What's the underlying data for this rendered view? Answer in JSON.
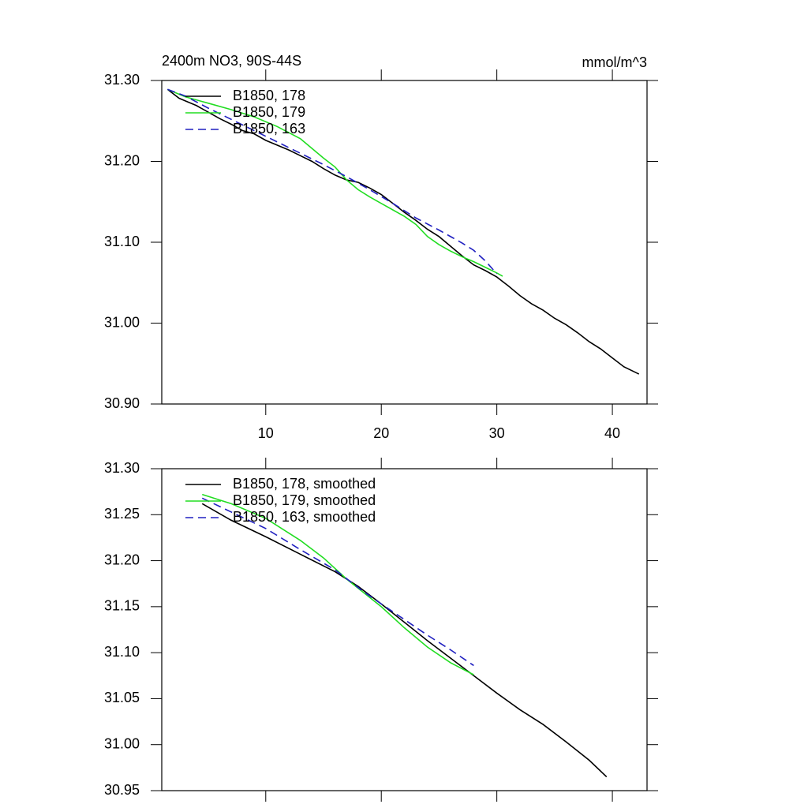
{
  "chart_data": [
    {
      "type": "line",
      "title": "2400m NO3, 90S-44S",
      "units": "mmol/m^3",
      "xlim": [
        1,
        43
      ],
      "xticks": [
        10,
        20,
        30,
        40
      ],
      "xtick_labels": true,
      "ylim": [
        30.9,
        31.3
      ],
      "yticks": [
        {
          "value": 30.9,
          "label": "30.90"
        },
        {
          "value": 31.0,
          "label": "31.00"
        },
        {
          "value": 31.1,
          "label": "31.10"
        },
        {
          "value": 31.2,
          "label": "31.20"
        },
        {
          "value": 31.3,
          "label": "31.30"
        }
      ],
      "legend": "upper left",
      "series": [
        {
          "name": "B1850, 178",
          "color": "#000000",
          "dash": false,
          "x": [
            1.5,
            2.5,
            3,
            4,
            5,
            6,
            7,
            8,
            9,
            10,
            11,
            12,
            13,
            14,
            15,
            16,
            17,
            18,
            19,
            20,
            21,
            22,
            23,
            24,
            25,
            26,
            27,
            28,
            29,
            30,
            31,
            32,
            33,
            34,
            35,
            36,
            37,
            38,
            39,
            40,
            41,
            42.3
          ],
          "values": [
            31.289,
            31.278,
            31.275,
            31.269,
            31.261,
            31.253,
            31.246,
            31.238,
            31.234,
            31.226,
            31.22,
            31.214,
            31.207,
            31.2,
            31.191,
            31.183,
            31.177,
            31.174,
            31.167,
            31.159,
            31.148,
            31.137,
            31.127,
            31.116,
            31.107,
            31.095,
            31.083,
            31.072,
            31.065,
            31.057,
            31.046,
            31.034,
            31.024,
            31.016,
            31.006,
            30.998,
            30.988,
            30.977,
            30.968,
            30.957,
            30.946,
            30.937
          ]
        },
        {
          "name": "B1850, 179",
          "color": "#22dd22",
          "dash": false,
          "x": [
            1.5,
            3,
            5,
            7,
            9,
            11,
            13,
            15,
            16,
            17,
            18,
            19,
            20,
            21,
            22,
            23,
            24,
            25,
            26,
            27,
            28,
            29,
            30,
            30.5
          ],
          "values": [
            31.289,
            31.28,
            31.272,
            31.264,
            31.255,
            31.243,
            31.228,
            31.204,
            31.193,
            31.177,
            31.165,
            31.156,
            31.148,
            31.14,
            31.132,
            31.122,
            31.107,
            31.097,
            31.089,
            31.082,
            31.076,
            31.069,
            31.062,
            31.058
          ]
        },
        {
          "name": "B1850, 163",
          "color": "#2020c0",
          "dash": true,
          "x": [
            1.5,
            3,
            5,
            7,
            9,
            11,
            13,
            15,
            17,
            19,
            21,
            23,
            25,
            27,
            28,
            29,
            30
          ],
          "values": [
            31.289,
            31.281,
            31.266,
            31.252,
            31.238,
            31.224,
            31.21,
            31.196,
            31.181,
            31.165,
            31.148,
            31.13,
            31.115,
            31.099,
            31.09,
            31.077,
            31.061
          ]
        }
      ]
    },
    {
      "type": "line",
      "xlim": [
        1,
        43
      ],
      "xticks": [
        10,
        20,
        30,
        40
      ],
      "xtick_labels": false,
      "ylim": [
        30.95,
        31.3
      ],
      "yticks": [
        30.95,
        {
          "value": 31.0,
          "label": "31.00"
        },
        31.05,
        {
          "value": 31.1,
          "label": "31.10"
        },
        31.15,
        {
          "value": 31.2,
          "label": "31.20"
        },
        31.25,
        {
          "value": 31.3,
          "label": "31.30"
        }
      ],
      "legend": "upper left",
      "series": [
        {
          "name": "B1850, 178, smoothed",
          "color": "#000000",
          "dash": false,
          "x": [
            4.5,
            7,
            10,
            13,
            16,
            18,
            20,
            22,
            24,
            26,
            28,
            30,
            32,
            34,
            36,
            38,
            39.5
          ],
          "values": [
            31.262,
            31.244,
            31.226,
            31.207,
            31.188,
            31.172,
            31.153,
            31.133,
            31.113,
            31.094,
            31.075,
            31.056,
            31.038,
            31.022,
            31.003,
            30.983,
            30.965
          ]
        },
        {
          "name": "B1850, 179, smoothed",
          "color": "#22dd22",
          "dash": false,
          "x": [
            4.5,
            7,
            10,
            13,
            15,
            17,
            18.5,
            20,
            22,
            24,
            26,
            28
          ],
          "values": [
            31.272,
            31.262,
            31.246,
            31.222,
            31.203,
            31.18,
            31.165,
            31.15,
            31.127,
            31.106,
            31.089,
            31.076
          ]
        },
        {
          "name": "B1850, 163, smoothed",
          "color": "#2020c0",
          "dash": true,
          "x": [
            4.5,
            7,
            10,
            13,
            16,
            18.5,
            20,
            22,
            24,
            26,
            28
          ],
          "values": [
            31.268,
            31.253,
            31.235,
            31.212,
            31.19,
            31.166,
            31.153,
            31.136,
            31.119,
            31.103,
            31.086
          ]
        }
      ]
    }
  ]
}
